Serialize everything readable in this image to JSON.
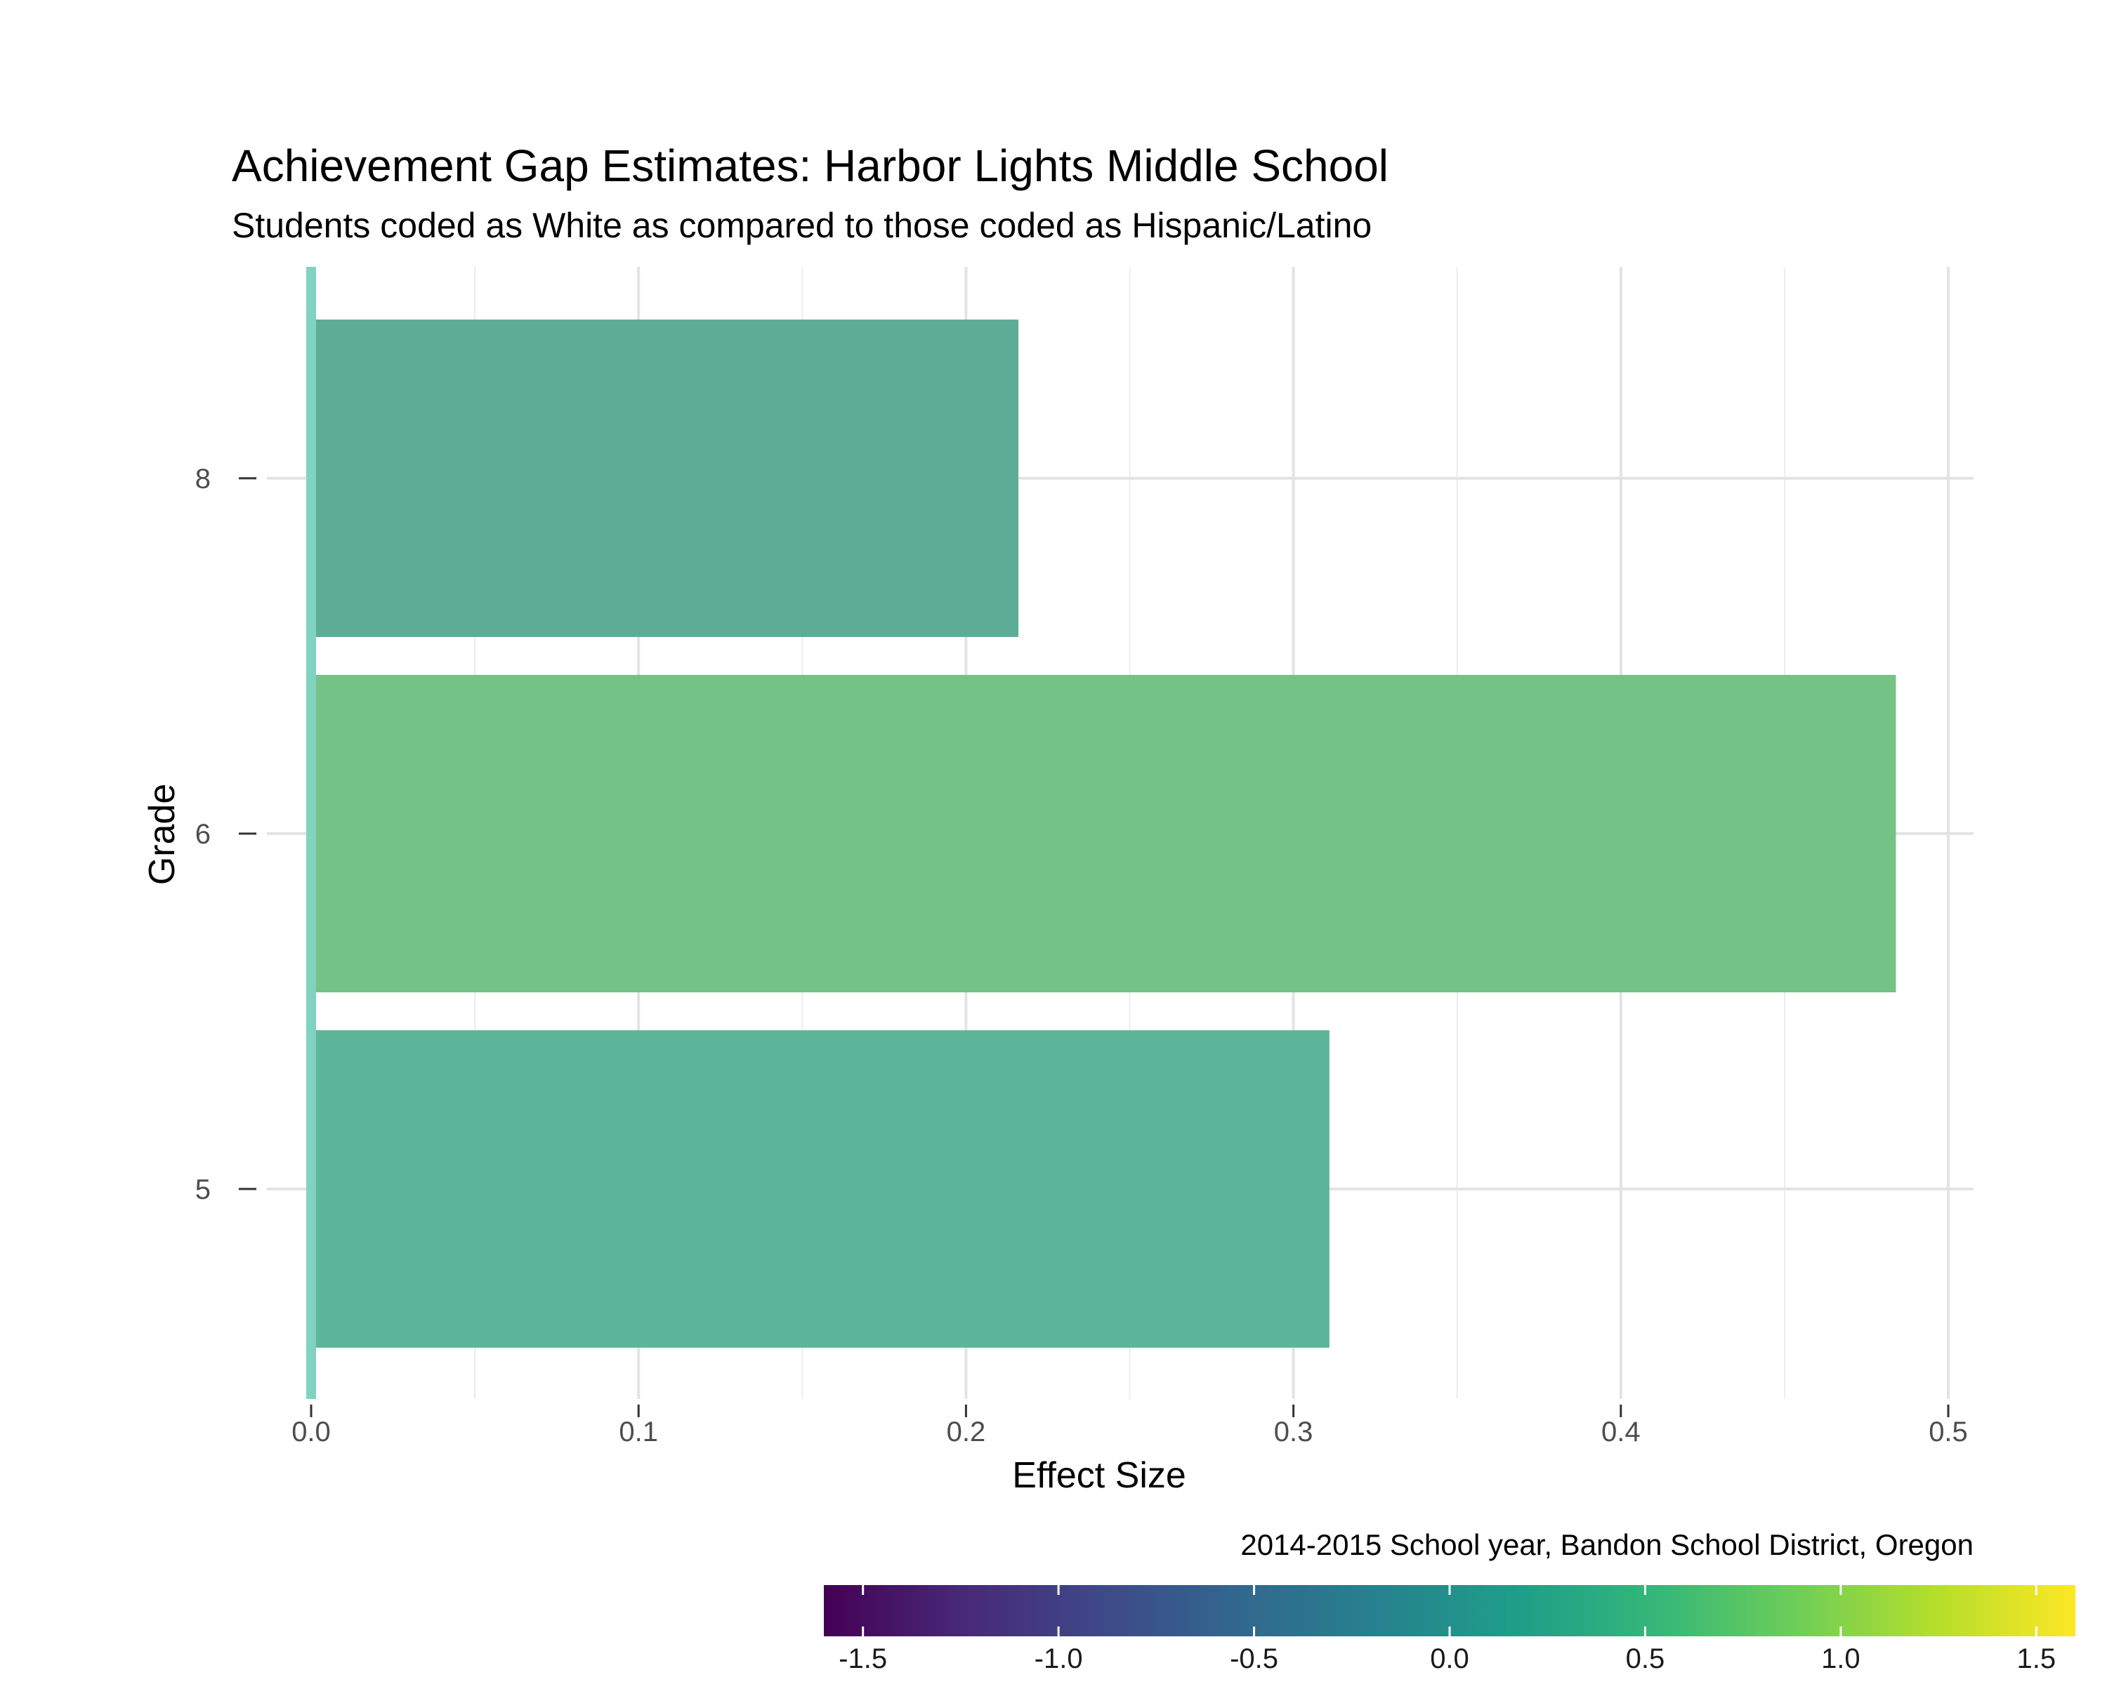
{
  "chart_data": {
    "type": "bar",
    "orientation": "horizontal",
    "title": "Achievement Gap Estimates: Harbor Lights Middle School",
    "subtitle": "Students coded as White as compared to those coded as Hispanic/Latino",
    "xlabel": "Effect Size",
    "ylabel": "Grade",
    "caption": "2014-2015 School year, Bandon School District, Oregon",
    "categories": [
      "5",
      "6",
      "8"
    ],
    "values": [
      0.311,
      0.484,
      0.216
    ],
    "xlim": [
      0,
      0.5
    ],
    "x_ticks": [
      0.0,
      0.1,
      0.2,
      0.3,
      0.4,
      0.5
    ],
    "x_tick_labels": [
      "0.0",
      "0.1",
      "0.2",
      "0.3",
      "0.4",
      "0.5"
    ],
    "reference_line": {
      "x": 0,
      "color": "#7fd3bf"
    },
    "grid": true,
    "bar_colors": [
      "#5db69a",
      "#75c287",
      "#5eac96"
    ],
    "colorbar": {
      "range": [
        -1.6,
        1.6
      ],
      "ticks": [
        -1.5,
        -1.0,
        -0.5,
        0.0,
        0.5,
        1.0,
        1.5
      ],
      "tick_labels": [
        "-1.5",
        "-1.0",
        "-0.5",
        "0.0",
        "0.5",
        "1.0",
        "1.5"
      ],
      "palette": "viridis",
      "colors": [
        "#440154",
        "#482878",
        "#3e4989",
        "#31688e",
        "#26828e",
        "#1f9e89",
        "#35b779",
        "#6ece58",
        "#b5de2b",
        "#fde725"
      ],
      "placement": "bottom-right"
    }
  }
}
